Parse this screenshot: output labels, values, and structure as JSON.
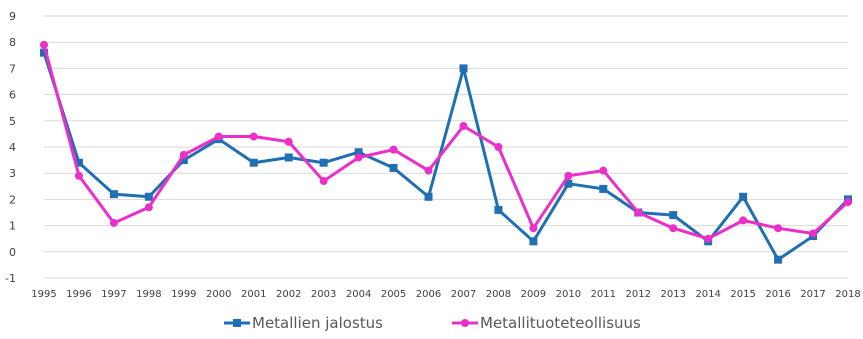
{
  "chart_data": {
    "type": "line",
    "title": "",
    "xlabel": "",
    "ylabel": "",
    "ylim": [
      -1,
      9
    ],
    "yticks": [
      -1,
      0,
      1,
      2,
      3,
      4,
      5,
      6,
      7,
      8,
      9
    ],
    "grid": true,
    "legend_position": "bottom",
    "categories": [
      "1995",
      "1996",
      "1997",
      "1998",
      "1999",
      "2000",
      "2001",
      "2002",
      "2003",
      "2004",
      "2005",
      "2006",
      "2007",
      "2008",
      "2009",
      "2010",
      "2011",
      "2012",
      "2013",
      "2014",
      "2015",
      "2016",
      "2017",
      "2018"
    ],
    "series": [
      {
        "name": "Metallien jalostus",
        "color": "#1f6fb2",
        "marker": "square",
        "values": [
          7.6,
          3.4,
          2.2,
          2.1,
          3.5,
          4.3,
          3.4,
          3.6,
          3.4,
          3.8,
          3.2,
          2.1,
          7.0,
          1.6,
          0.4,
          2.6,
          2.4,
          1.5,
          1.4,
          0.4,
          2.1,
          -0.3,
          0.6,
          2.0
        ]
      },
      {
        "name": "Metallituoteteollisuus",
        "color": "#ec2fc8",
        "marker": "circle",
        "values": [
          7.9,
          2.9,
          1.1,
          1.7,
          3.7,
          4.4,
          4.4,
          4.2,
          2.7,
          3.6,
          3.9,
          3.1,
          4.8,
          4.0,
          0.9,
          2.9,
          3.1,
          1.5,
          0.9,
          0.5,
          1.2,
          0.9,
          0.7,
          1.9
        ]
      }
    ]
  }
}
